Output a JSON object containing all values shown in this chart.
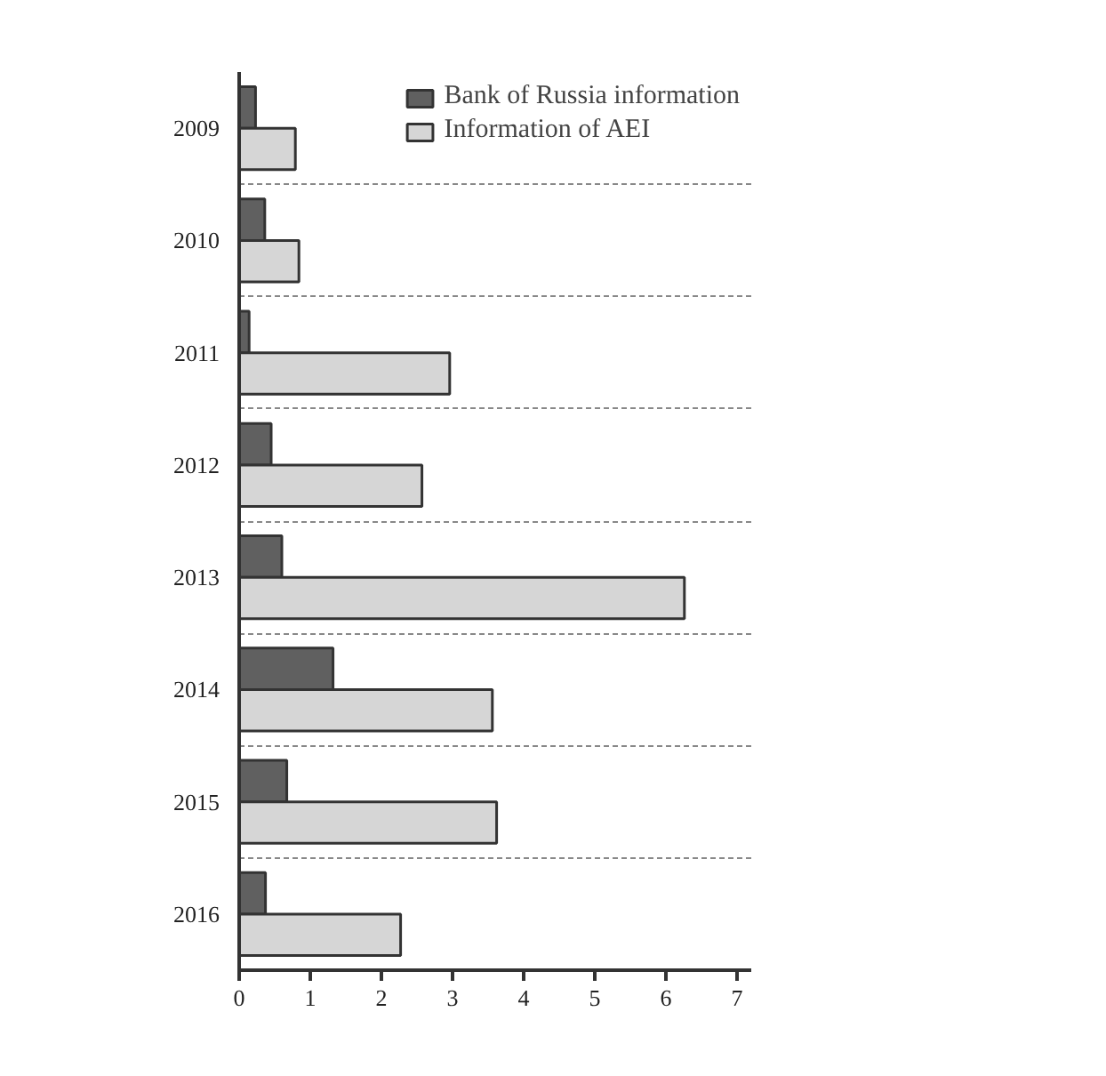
{
  "chart_data": {
    "type": "bar",
    "orientation": "horizontal",
    "categories": [
      "2009",
      "2010",
      "2011",
      "2012",
      "2013",
      "2014",
      "2015",
      "2016"
    ],
    "series": [
      {
        "name": "Bank of Russia information",
        "color": "#606060",
        "values": [
          0.23,
          0.36,
          0.14,
          0.45,
          0.6,
          1.32,
          0.67,
          0.37
        ]
      },
      {
        "name": "Information of AEI",
        "color": "#d6d6d6",
        "values": [
          0.79,
          0.84,
          2.96,
          2.57,
          6.26,
          3.56,
          3.62,
          2.27
        ]
      }
    ],
    "xlim": [
      0,
      7.2
    ],
    "xticks": [
      0,
      1,
      2,
      3,
      4,
      5,
      6,
      7
    ],
    "grid": "y",
    "legend": "top right"
  }
}
